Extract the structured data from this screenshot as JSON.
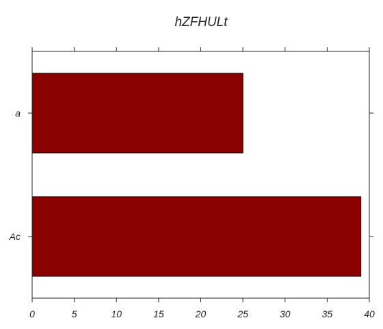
{
  "chart_data": {
    "type": "bar",
    "orientation": "horizontal",
    "title": "hZFHULt",
    "categories": [
      "a",
      "Ac"
    ],
    "values": [
      25,
      39
    ],
    "xlim": [
      0,
      40
    ],
    "xticks": [
      "0",
      "5",
      "10",
      "15",
      "20",
      "25",
      "30",
      "35",
      "40"
    ],
    "xlabel": "",
    "ylabel": "",
    "grid": false,
    "bar_color": "#8b0000"
  }
}
